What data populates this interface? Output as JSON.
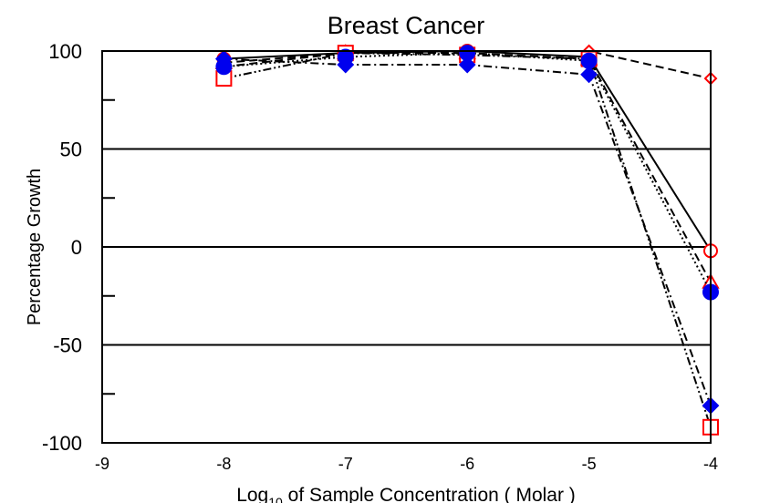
{
  "chart_data": {
    "type": "line",
    "title": "Breast Cancer",
    "xlabel_main": "Log",
    "xlabel_sub": "10",
    "xlabel_rest": " of Sample Concentration ( Molar )",
    "ylabel": "Percentage Growth",
    "xlim": [
      -9,
      -4
    ],
    "ylim": [
      -100,
      100
    ],
    "xticks": [
      -9,
      -8,
      -7,
      -6,
      -5,
      -4
    ],
    "yticks": [
      100,
      50,
      0,
      -50,
      -100
    ],
    "hgrid": [
      50,
      0,
      -50
    ],
    "minor_yticks": [
      75,
      25,
      -25,
      -75
    ],
    "grid": true,
    "legend": "none",
    "series": [
      {
        "marker": "circle-open",
        "color": "#ff0000",
        "dash": "solid",
        "x": [
          -8,
          -7,
          -6,
          -5,
          -4
        ],
        "y": [
          96,
          99,
          100,
          97,
          -2
        ]
      },
      {
        "marker": "diamond-open",
        "color": "#ff0000",
        "dash": "dashed",
        "x": [
          -8,
          -7,
          -6,
          -5,
          -4
        ],
        "y": [
          92,
          99,
          100,
          100,
          86
        ]
      },
      {
        "marker": "triangle-open",
        "color": "#ff0000",
        "dash": "dashed",
        "x": [
          -8,
          -7,
          -6,
          -5,
          -4
        ],
        "y": [
          94,
          99,
          99,
          96,
          -18
        ]
      },
      {
        "marker": "square-open",
        "color": "#ff0000",
        "dash": "dashdotdot",
        "x": [
          -8,
          -7,
          -6,
          -5,
          -4
        ],
        "y": [
          86,
          99,
          98,
          96,
          -92
        ]
      },
      {
        "marker": "circle-filled",
        "color": "#0000ee",
        "dash": "dotted",
        "x": [
          -8,
          -7,
          -6,
          -5,
          -4
        ],
        "y": [
          92,
          97,
          99,
          95,
          -23
        ]
      },
      {
        "marker": "diamond-filled",
        "color": "#0000ee",
        "dash": "dashdot",
        "x": [
          -8,
          -7,
          -6,
          -5,
          -4
        ],
        "y": [
          96,
          93,
          93,
          88,
          -81
        ]
      }
    ]
  }
}
